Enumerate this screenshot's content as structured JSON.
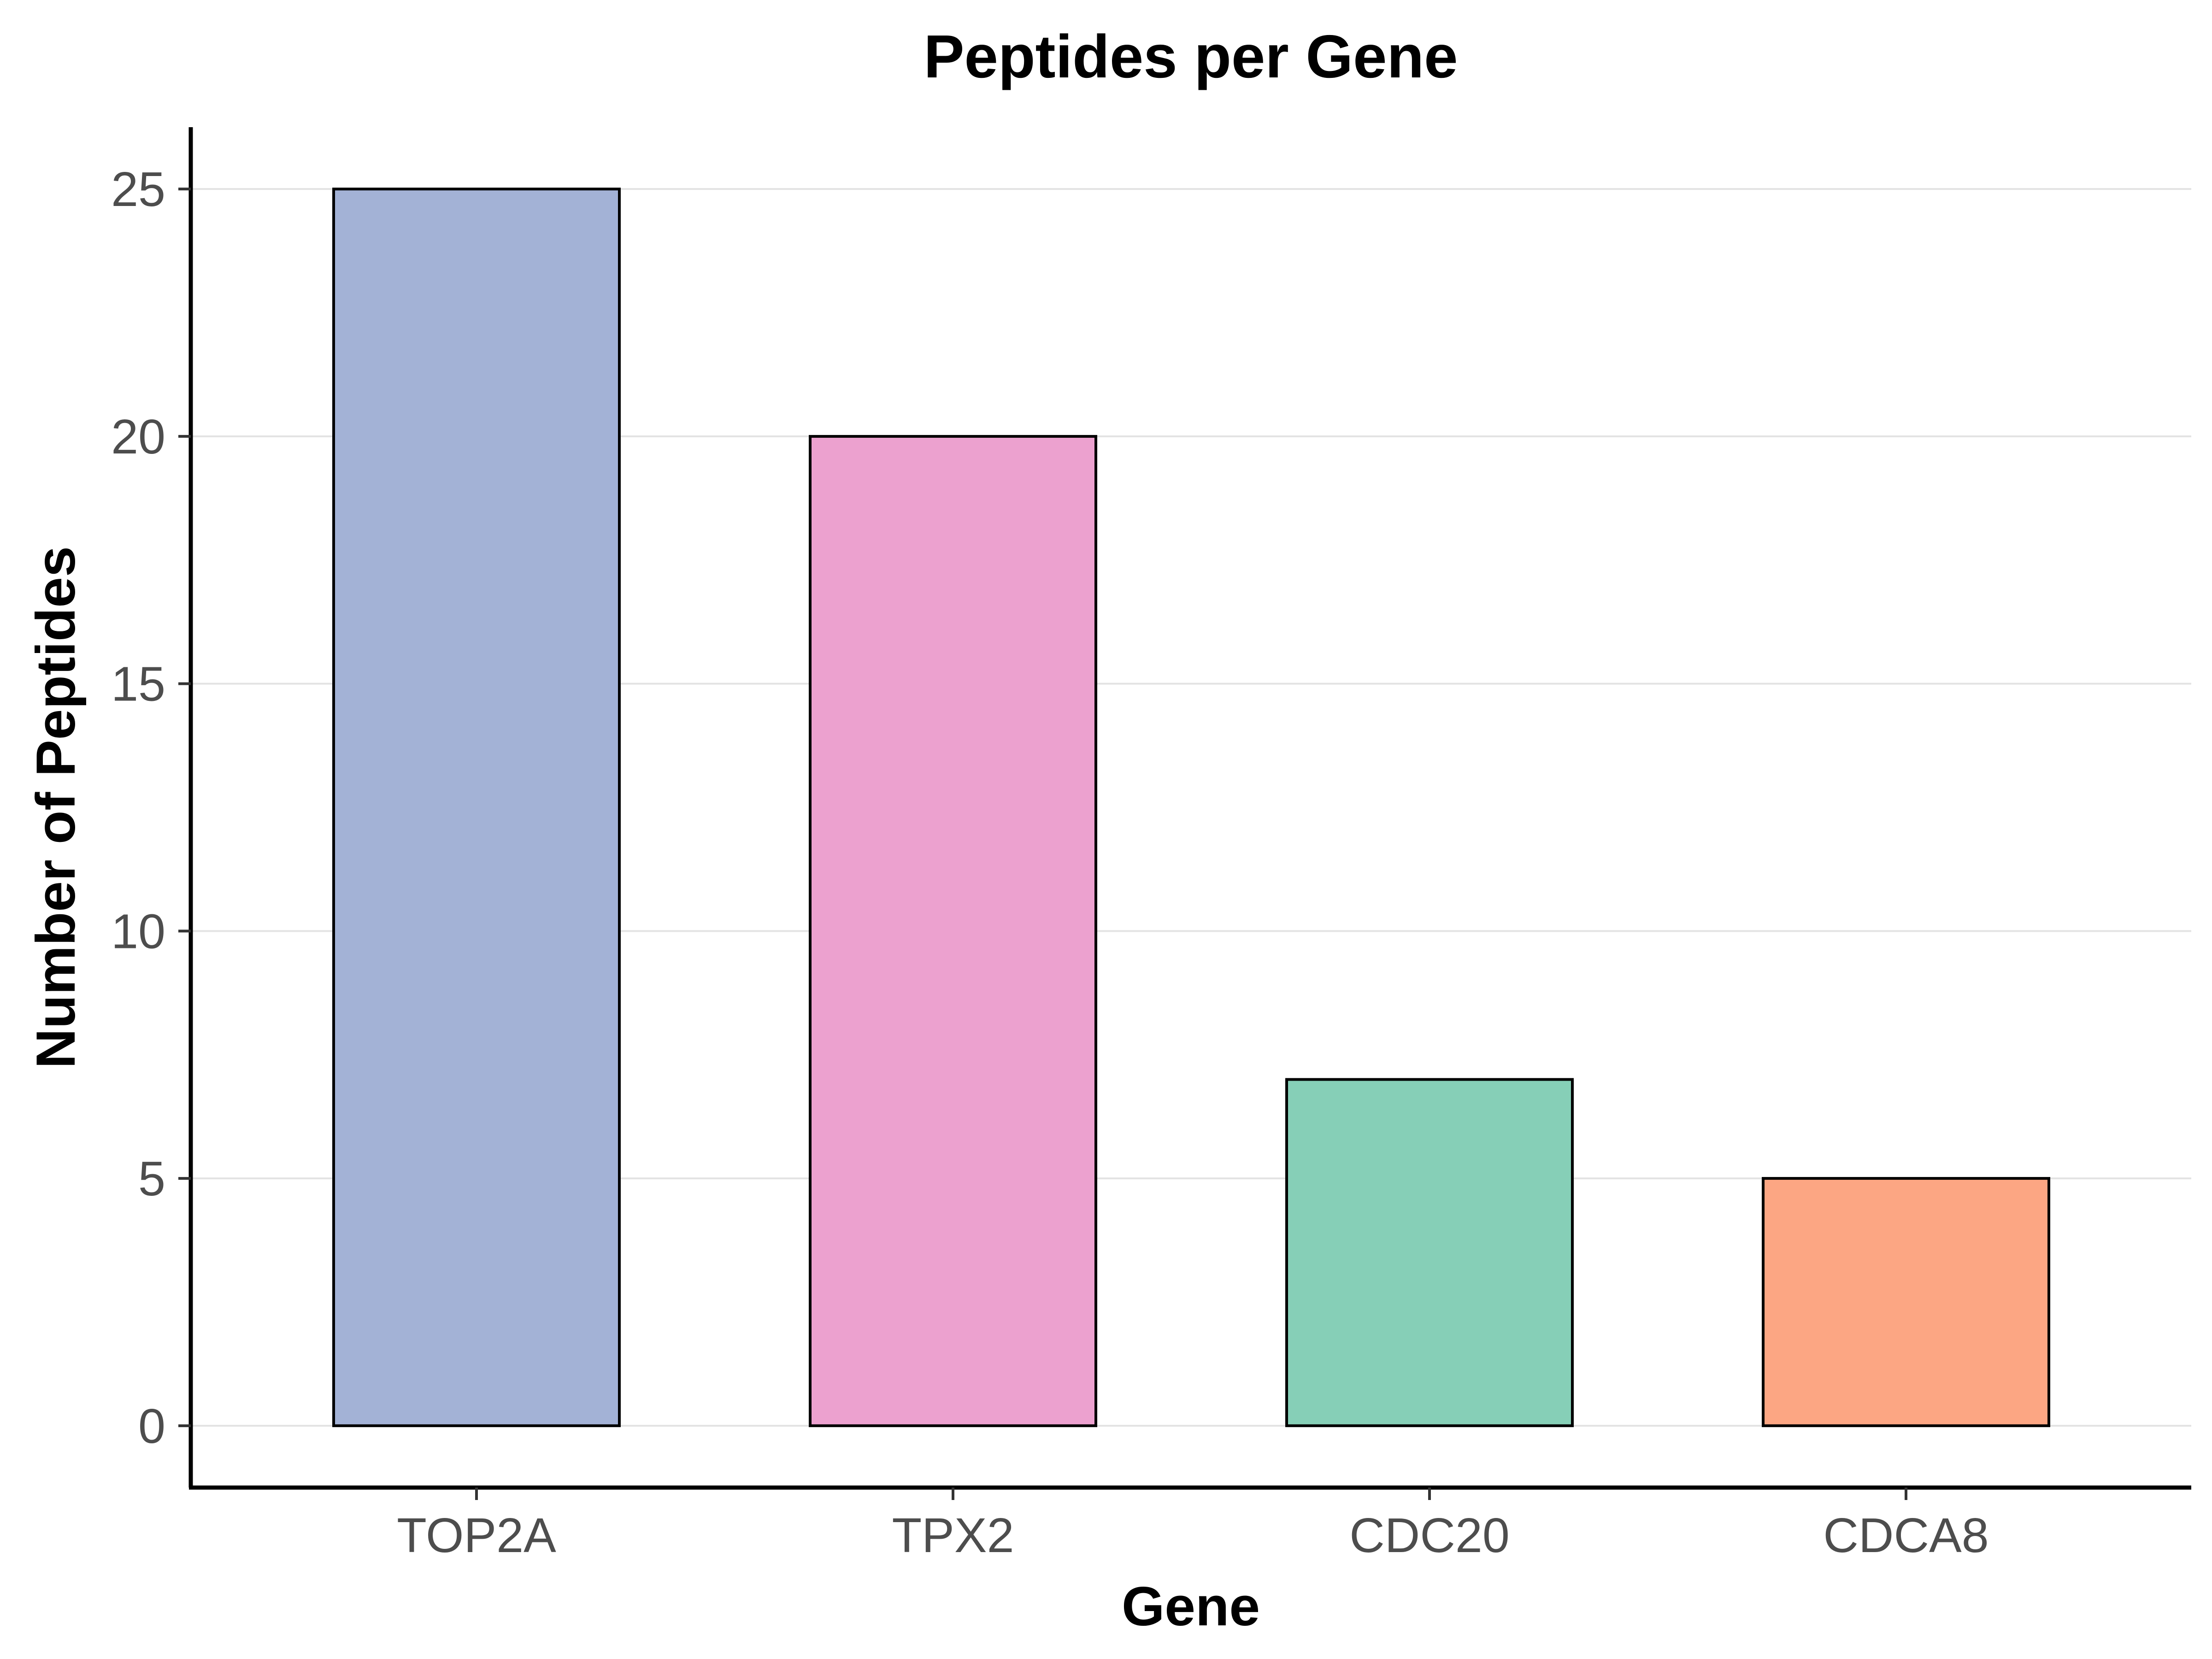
{
  "chart_data": {
    "type": "bar",
    "title": "Peptides per Gene",
    "xlabel": "Gene",
    "ylabel": "Number of Peptides",
    "categories": [
      "TOP2A",
      "TPX2",
      "CDC20",
      "CDCA8"
    ],
    "values": [
      25,
      20,
      7,
      5
    ],
    "colors": [
      "#a3b2d6",
      "#eca1cf",
      "#86cfb7",
      "#fca683"
    ],
    "ylim": [
      -1.25,
      26.25
    ],
    "yticks": [
      0,
      5,
      10,
      15,
      20,
      25
    ],
    "grid": "horizontal",
    "legend": "none"
  }
}
